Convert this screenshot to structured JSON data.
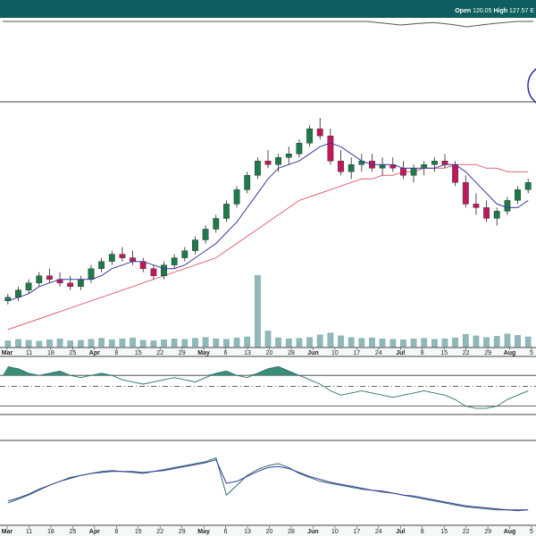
{
  "quote": {
    "open_label": "Open",
    "open_value": "120.05",
    "high_label": "High",
    "high_value": "127.57",
    "trail": "E"
  },
  "colors": {
    "header": "#0e5f5f",
    "up": "#1f7a4a",
    "down": "#c2185b",
    "ma_short": "#3a3a9a",
    "ma_long": "#e06070",
    "volume": "#8fb8b8",
    "osc_fill": "#3c8c7a",
    "line_a": "#3a3a9a",
    "line_b": "#2f6f6f",
    "ring": "#2a2a9a"
  },
  "chart_data": [
    {
      "type": "line",
      "panel": "top-indicator",
      "series": [
        {
          "values": [
            0,
            0,
            0,
            0,
            0,
            0,
            0,
            0,
            0,
            0,
            0,
            0,
            0,
            0,
            0,
            0,
            0,
            0,
            0,
            0,
            0,
            0,
            0,
            -0.5,
            -1,
            -0.6,
            -0.3,
            -0.8,
            -1.5,
            -0.9,
            -0.4,
            0,
            0
          ]
        }
      ]
    },
    {
      "type": "candlestick",
      "panel": "price",
      "x_tick_labels": [
        "Mar",
        "11",
        "18",
        "25",
        "Apr",
        "8",
        "15",
        "22",
        "29",
        "May",
        "6",
        "13",
        "20",
        "28",
        "Jun",
        "10",
        "17",
        "24",
        "Jul",
        "8",
        "15",
        "22",
        "29",
        "Aug",
        "5"
      ],
      "bold_tick_labels": [
        "Mar",
        "Apr",
        "May",
        "Jun",
        "Jul",
        "Aug"
      ],
      "ohlc": [
        [
          62,
          64,
          61,
          63
        ],
        [
          63,
          66,
          62,
          65
        ],
        [
          65,
          68,
          64,
          67
        ],
        [
          67,
          70,
          66,
          69
        ],
        [
          69,
          71,
          67,
          68
        ],
        [
          68,
          70,
          66,
          67
        ],
        [
          67,
          69,
          65,
          66
        ],
        [
          66,
          69,
          65,
          68
        ],
        [
          68,
          72,
          67,
          71
        ],
        [
          71,
          74,
          70,
          73
        ],
        [
          73,
          76,
          72,
          75
        ],
        [
          75,
          77,
          73,
          74
        ],
        [
          74,
          76,
          72,
          73
        ],
        [
          73,
          74,
          70,
          71
        ],
        [
          71,
          72,
          68,
          69
        ],
        [
          69,
          73,
          68,
          72
        ],
        [
          72,
          75,
          71,
          74
        ],
        [
          74,
          77,
          73,
          76
        ],
        [
          76,
          80,
          75,
          79
        ],
        [
          79,
          83,
          78,
          82
        ],
        [
          82,
          86,
          81,
          85
        ],
        [
          85,
          90,
          84,
          89
        ],
        [
          89,
          94,
          88,
          93
        ],
        [
          93,
          98,
          92,
          97
        ],
        [
          97,
          102,
          96,
          101
        ],
        [
          101,
          104,
          99,
          100
        ],
        [
          100,
          103,
          98,
          102
        ],
        [
          102,
          105,
          100,
          103
        ],
        [
          103,
          107,
          102,
          106
        ],
        [
          106,
          111,
          105,
          110
        ],
        [
          110,
          113,
          107,
          108
        ],
        [
          108,
          110,
          100,
          101
        ],
        [
          101,
          104,
          97,
          98
        ],
        [
          98,
          102,
          96,
          100
        ],
        [
          100,
          103,
          98,
          101
        ],
        [
          101,
          103,
          98,
          99
        ],
        [
          99,
          102,
          97,
          100
        ],
        [
          100,
          102,
          98,
          99
        ],
        [
          99,
          101,
          96,
          97
        ],
        [
          97,
          100,
          95,
          99
        ],
        [
          99,
          101,
          97,
          100
        ],
        [
          100,
          102,
          98,
          101
        ],
        [
          101,
          103,
          99,
          100
        ],
        [
          100,
          101,
          94,
          95
        ],
        [
          95,
          97,
          88,
          89
        ],
        [
          89,
          92,
          86,
          88
        ],
        [
          88,
          90,
          84,
          85
        ],
        [
          85,
          88,
          83,
          87
        ],
        [
          87,
          91,
          86,
          90
        ],
        [
          90,
          94,
          89,
          93
        ],
        [
          93,
          96,
          92,
          95
        ]
      ],
      "ma_short": [
        62,
        63,
        64,
        66,
        67,
        68,
        68,
        68,
        68,
        69,
        71,
        72,
        73,
        73,
        72,
        71,
        71,
        72,
        74,
        76,
        78,
        81,
        84,
        88,
        92,
        96,
        99,
        100,
        101,
        103,
        105,
        106,
        105,
        103,
        101,
        100,
        100,
        100,
        99,
        99,
        99,
        99,
        100,
        100,
        98,
        95,
        92,
        89,
        88,
        88,
        90
      ],
      "ma_long": [
        54,
        55,
        56,
        57,
        58,
        59,
        60,
        61,
        62,
        63,
        64,
        65,
        66,
        67,
        68,
        69,
        70,
        71,
        72,
        73,
        74,
        76,
        78,
        80,
        82,
        84,
        86,
        88,
        90,
        91,
        92,
        93,
        94,
        95,
        96,
        96,
        97,
        97,
        98,
        98,
        99,
        99,
        99,
        100,
        100,
        100,
        99,
        99,
        98,
        98,
        98
      ],
      "ylim": [
        50,
        116
      ]
    },
    {
      "type": "bar",
      "panel": "volume",
      "values": [
        1.2,
        1.5,
        1.3,
        1.1,
        1.4,
        1.6,
        1.2,
        1.3,
        1.5,
        1.7,
        1.4,
        1.6,
        1.8,
        1.3,
        1.2,
        1.4,
        1.6,
        1.5,
        1.7,
        1.9,
        1.6,
        1.5,
        1.8,
        2.0,
        14.5,
        3.2,
        1.8,
        1.6,
        1.7,
        1.9,
        2.4,
        2.8,
        2.2,
        1.9,
        1.7,
        1.8,
        1.6,
        1.5,
        1.4,
        1.6,
        1.7,
        1.5,
        1.6,
        1.8,
        2.5,
        2.2,
        1.9,
        2.1,
        2.6,
        2.3,
        2.0
      ],
      "ylim": [
        0,
        16
      ]
    },
    {
      "type": "area",
      "panel": "oscillator",
      "values": [
        0.9,
        0.8,
        0.6,
        0.5,
        0.6,
        0.7,
        0.5,
        0.4,
        0.5,
        0.6,
        0.5,
        0.3,
        0.2,
        0.1,
        0.2,
        0.3,
        0.4,
        0.3,
        0.2,
        0.4,
        0.6,
        0.7,
        0.5,
        0.4,
        0.6,
        0.8,
        0.9,
        0.7,
        0.5,
        0.3,
        0.1,
        -0.2,
        -0.4,
        -0.3,
        -0.2,
        -0.3,
        -0.4,
        -0.5,
        -0.4,
        -0.3,
        -0.2,
        -0.3,
        -0.4,
        -0.6,
        -0.9,
        -1.0,
        -1.0,
        -0.9,
        -0.6,
        -0.4,
        -0.2
      ],
      "upper_band": 0.5,
      "lower_band": -0.9,
      "zero": 0,
      "ylim": [
        -1.2,
        1.2
      ]
    },
    {
      "type": "line",
      "panel": "bottom-indicator",
      "series": [
        {
          "values": [
            20,
            24,
            28,
            33,
            38,
            42,
            46,
            48,
            50,
            52,
            53,
            52,
            51,
            50,
            52,
            54,
            56,
            58,
            60,
            62,
            66,
            28,
            38,
            48,
            54,
            58,
            60,
            56,
            50,
            46,
            42,
            40,
            38,
            36,
            34,
            33,
            31,
            30,
            28,
            26,
            24,
            22,
            20,
            18,
            16,
            15,
            14,
            13,
            13,
            12,
            13
          ]
        },
        {
          "values": [
            22,
            25,
            29,
            34,
            38,
            42,
            45,
            48,
            50,
            51,
            52,
            52,
            52,
            51,
            52,
            53,
            55,
            57,
            59,
            61,
            64,
            40,
            42,
            47,
            52,
            56,
            57,
            55,
            51,
            47,
            44,
            41,
            39,
            37,
            35,
            33,
            32,
            30,
            28,
            27,
            25,
            23,
            21,
            19,
            17,
            16,
            15,
            14,
            13,
            13,
            13
          ]
        }
      ],
      "x_tick_labels": [
        "Mar",
        "11",
        "18",
        "25",
        "Apr",
        "8",
        "15",
        "22",
        "29",
        "May",
        "6",
        "13",
        "20",
        "28",
        "Jun",
        "10",
        "17",
        "24",
        "Jul",
        "8",
        "15",
        "22",
        "29",
        "Aug",
        "5"
      ],
      "ylim": [
        0,
        80
      ]
    }
  ]
}
